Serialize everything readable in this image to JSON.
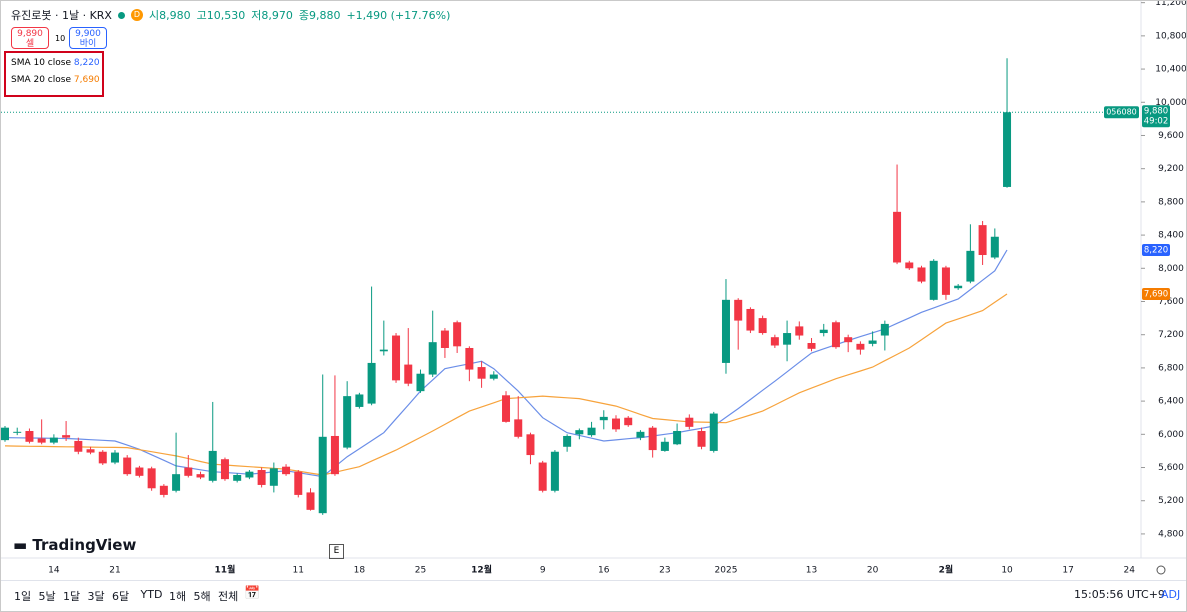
{
  "header": {
    "symbol": "유진로봇 · 1날 · KRX",
    "flag": "D",
    "ohlc": [
      "시8,980",
      "고10,530",
      "저8,970",
      "종9,880",
      "+1,490 (+17.76%)"
    ],
    "sell_price": "9,890",
    "sell_label": "셀",
    "spread": "10",
    "buy_price": "9,900",
    "buy_label": "바이"
  },
  "toolbar": {
    "ranges": [
      "1일",
      "5날",
      "1달",
      "3달",
      "6달",
      "YTD",
      "1해",
      "5해",
      "전체"
    ],
    "clock": "15:05:56 UTC+9",
    "adj": "ADJ"
  },
  "watermark": "TradingView",
  "event_marker": "E",
  "chart_data": {
    "type": "candlestick",
    "categories": [
      null,
      null,
      null,
      null,
      "14",
      null,
      null,
      null,
      null,
      "21",
      null,
      null,
      null,
      null,
      null,
      null,
      null,
      null,
      "11월",
      null,
      null,
      null,
      null,
      null,
      "11",
      null,
      null,
      null,
      null,
      "18",
      null,
      null,
      null,
      null,
      "25",
      null,
      null,
      null,
      null,
      "12월",
      null,
      null,
      null,
      null,
      "9",
      null,
      null,
      null,
      null,
      "16",
      null,
      null,
      null,
      null,
      "23",
      null,
      null,
      null,
      null,
      "2025",
      null,
      null,
      null,
      null,
      null,
      null,
      "13",
      null,
      null,
      null,
      null,
      "20",
      null,
      null,
      null,
      null,
      null,
      "2월",
      null,
      null,
      null,
      null,
      "10",
      null,
      null,
      null,
      null,
      "17",
      null,
      null,
      null,
      null,
      "24"
    ],
    "open": [
      5930,
      6020,
      6040,
      5950,
      5900,
      5990,
      5920,
      5820,
      5790,
      5660,
      5720,
      5600,
      5590,
      5380,
      5320,
      5600,
      5520,
      5440,
      5700,
      5440,
      5480,
      5570,
      5380,
      5610,
      5550,
      5300,
      5050,
      5980,
      5840,
      6330,
      6370,
      7000,
      7190,
      6840,
      6520,
      6720,
      7250,
      7350,
      7040,
      6810,
      6670,
      6470,
      6180,
      6000,
      5660,
      5320,
      5850,
      6000,
      5990,
      6170,
      6190,
      6200,
      5960,
      6080,
      5800,
      5880,
      6200,
      6040,
      5800,
      6860,
      7620,
      7510,
      7400,
      7170,
      7080,
      7300,
      7100,
      7220,
      7350,
      7170,
      7090,
      7090,
      7190,
      8680,
      8070,
      8010,
      7620,
      8010,
      7760,
      7840,
      8520,
      8130,
      8980,
      null,
      null,
      null,
      null,
      null,
      null,
      null,
      null,
      null,
      null
    ],
    "high": [
      6100,
      6080,
      6070,
      6180,
      6000,
      6160,
      5960,
      5850,
      5810,
      5810,
      5750,
      5620,
      5610,
      5400,
      6020,
      5750,
      5550,
      6390,
      5720,
      5530,
      5570,
      5600,
      5660,
      5640,
      5570,
      5350,
      6720,
      6710,
      6640,
      6500,
      7780,
      7370,
      7220,
      7280,
      6780,
      7490,
      7280,
      7370,
      7060,
      6880,
      6760,
      6520,
      6460,
      6020,
      5680,
      5810,
      6000,
      6070,
      6150,
      6290,
      6230,
      6220,
      6050,
      6100,
      5960,
      6130,
      6240,
      6080,
      6270,
      7870,
      7640,
      7530,
      7430,
      7200,
      7370,
      7360,
      7160,
      7330,
      7370,
      7200,
      7120,
      7240,
      7370,
      9250,
      8090,
      8030,
      8110,
      8030,
      7810,
      8530,
      8570,
      8480,
      10530,
      null,
      null,
      null,
      null,
      null,
      null,
      null,
      null,
      null,
      null
    ],
    "low": [
      5910,
      5990,
      5890,
      5880,
      5880,
      5920,
      5760,
      5760,
      5630,
      5640,
      5500,
      5480,
      5320,
      5240,
      5300,
      5480,
      5460,
      5420,
      5440,
      5420,
      5460,
      5360,
      5300,
      5500,
      5240,
      5080,
      5030,
      5500,
      5820,
      6310,
      6350,
      6950,
      6620,
      6580,
      6500,
      6690,
      6920,
      6980,
      6640,
      6560,
      6650,
      6140,
      5950,
      5640,
      5300,
      5300,
      5790,
      5940,
      5970,
      6060,
      6030,
      6090,
      5930,
      5720,
      5790,
      5870,
      6060,
      5820,
      5780,
      6730,
      7020,
      7220,
      7200,
      7040,
      6880,
      7140,
      7000,
      7180,
      7030,
      6990,
      6960,
      7060,
      7010,
      8050,
      7980,
      7820,
      7610,
      7620,
      7740,
      7820,
      8040,
      8110,
      8970,
      null,
      null,
      null,
      null,
      null,
      null,
      null,
      null,
      null,
      null
    ],
    "close": [
      6080,
      6030,
      5910,
      5900,
      5960,
      5960,
      5790,
      5780,
      5650,
      5780,
      5520,
      5500,
      5350,
      5270,
      5520,
      5500,
      5480,
      5800,
      5460,
      5510,
      5550,
      5390,
      5590,
      5520,
      5270,
      5090,
      5970,
      5520,
      6460,
      6480,
      6860,
      7020,
      6650,
      6610,
      6730,
      7110,
      7040,
      7060,
      6780,
      6670,
      6720,
      6150,
      5970,
      5750,
      5320,
      5790,
      5980,
      6050,
      6080,
      6210,
      6060,
      6110,
      6030,
      5810,
      5910,
      6040,
      6090,
      5850,
      6250,
      7620,
      7370,
      7250,
      7220,
      7070,
      7220,
      7190,
      7030,
      7260,
      7050,
      7110,
      7020,
      7130,
      7330,
      8070,
      8000,
      7840,
      8090,
      7680,
      7790,
      8210,
      8160,
      8380,
      9880,
      null,
      null,
      null,
      null,
      null,
      null,
      null,
      null,
      null,
      null
    ],
    "up_color": "#089981",
    "down_color": "#f23645",
    "last_close_label": "9,880",
    "symbol_code": "056080",
    "countdown": "49:02",
    "lines": [
      {
        "name": "SMA 10 close",
        "color": "#6b8ee8",
        "last_label": "8,220",
        "label_color": "#2962ff",
        "values": [
          5960,
          5958,
          5956,
          5954,
          5952,
          5950,
          5943,
          5935,
          5928,
          5920,
          5870,
          5820,
          5753,
          5687,
          5620,
          5597,
          5573,
          5550,
          5540,
          5530,
          5520,
          5533,
          5547,
          5560,
          5537,
          5513,
          5490,
          5610,
          5730,
          5827,
          5923,
          6020,
          6187,
          6353,
          6520,
          6655,
          6790,
          6820,
          6850,
          6880,
          6790,
          6655,
          6520,
          6360,
          6200,
          6110,
          6020,
          5987,
          5953,
          5920,
          5933,
          5947,
          5960,
          5980,
          6000,
          6020,
          6047,
          6073,
          6100,
          6205,
          6310,
          6420,
          6530,
          6640,
          6753,
          6867,
          6980,
          7030,
          7080,
          7130,
          7177,
          7223,
          7270,
          7337,
          7403,
          7470,
          7523,
          7577,
          7630,
          7743,
          7857,
          7970,
          8220,
          null,
          null,
          null,
          null,
          null,
          null,
          null,
          null,
          null,
          null
        ]
      },
      {
        "name": "SMA 20 close",
        "color": "#f7a33c",
        "last_label": "7,690",
        "label_color": "#f57c00",
        "values": [
          5860,
          5858,
          5856,
          5854,
          5852,
          5850,
          5848,
          5846,
          5844,
          5842,
          5840,
          5815,
          5790,
          5765,
          5740,
          5707,
          5673,
          5640,
          5630,
          5620,
          5610,
          5600,
          5590,
          5580,
          5557,
          5533,
          5510,
          5543,
          5577,
          5610,
          5677,
          5743,
          5810,
          5887,
          5963,
          6040,
          6120,
          6200,
          6280,
          6330,
          6380,
          6430,
          6440,
          6450,
          6460,
          6450,
          6440,
          6430,
          6400,
          6370,
          6340,
          6290,
          6240,
          6190,
          6177,
          6163,
          6150,
          6147,
          6143,
          6140,
          6187,
          6233,
          6280,
          6353,
          6427,
          6500,
          6557,
          6613,
          6670,
          6717,
          6763,
          6810,
          6887,
          6963,
          7040,
          7140,
          7240,
          7340,
          7390,
          7440,
          7490,
          7590,
          7690,
          null,
          null,
          null,
          null,
          null,
          null,
          null,
          null,
          null,
          null
        ]
      }
    ],
    "ylim": [
      4510,
      11220
    ],
    "yticks": [
      {
        "value": 4800,
        "label": "4,800"
      },
      {
        "value": 5200,
        "label": "5,200"
      },
      {
        "value": 5600,
        "label": "5,600"
      },
      {
        "value": 6000,
        "label": "6,000"
      },
      {
        "value": 6400,
        "label": "6,400"
      },
      {
        "value": 6800,
        "label": "6,800"
      },
      {
        "value": 7200,
        "label": "7,200"
      },
      {
        "value": 7600,
        "label": "7,600"
      },
      {
        "value": 8000,
        "label": "8,000"
      },
      {
        "value": 8400,
        "label": "8,400"
      },
      {
        "value": 8800,
        "label": "8,800"
      },
      {
        "value": 9200,
        "label": "9,200"
      },
      {
        "value": 9600,
        "label": "9,600"
      },
      {
        "value": 10000,
        "label": "10,000"
      },
      {
        "value": 10400,
        "label": "10,400"
      },
      {
        "value": 10800,
        "label": "10,800"
      },
      {
        "value": 11200,
        "label": "11,200"
      }
    ],
    "grid": false
  }
}
